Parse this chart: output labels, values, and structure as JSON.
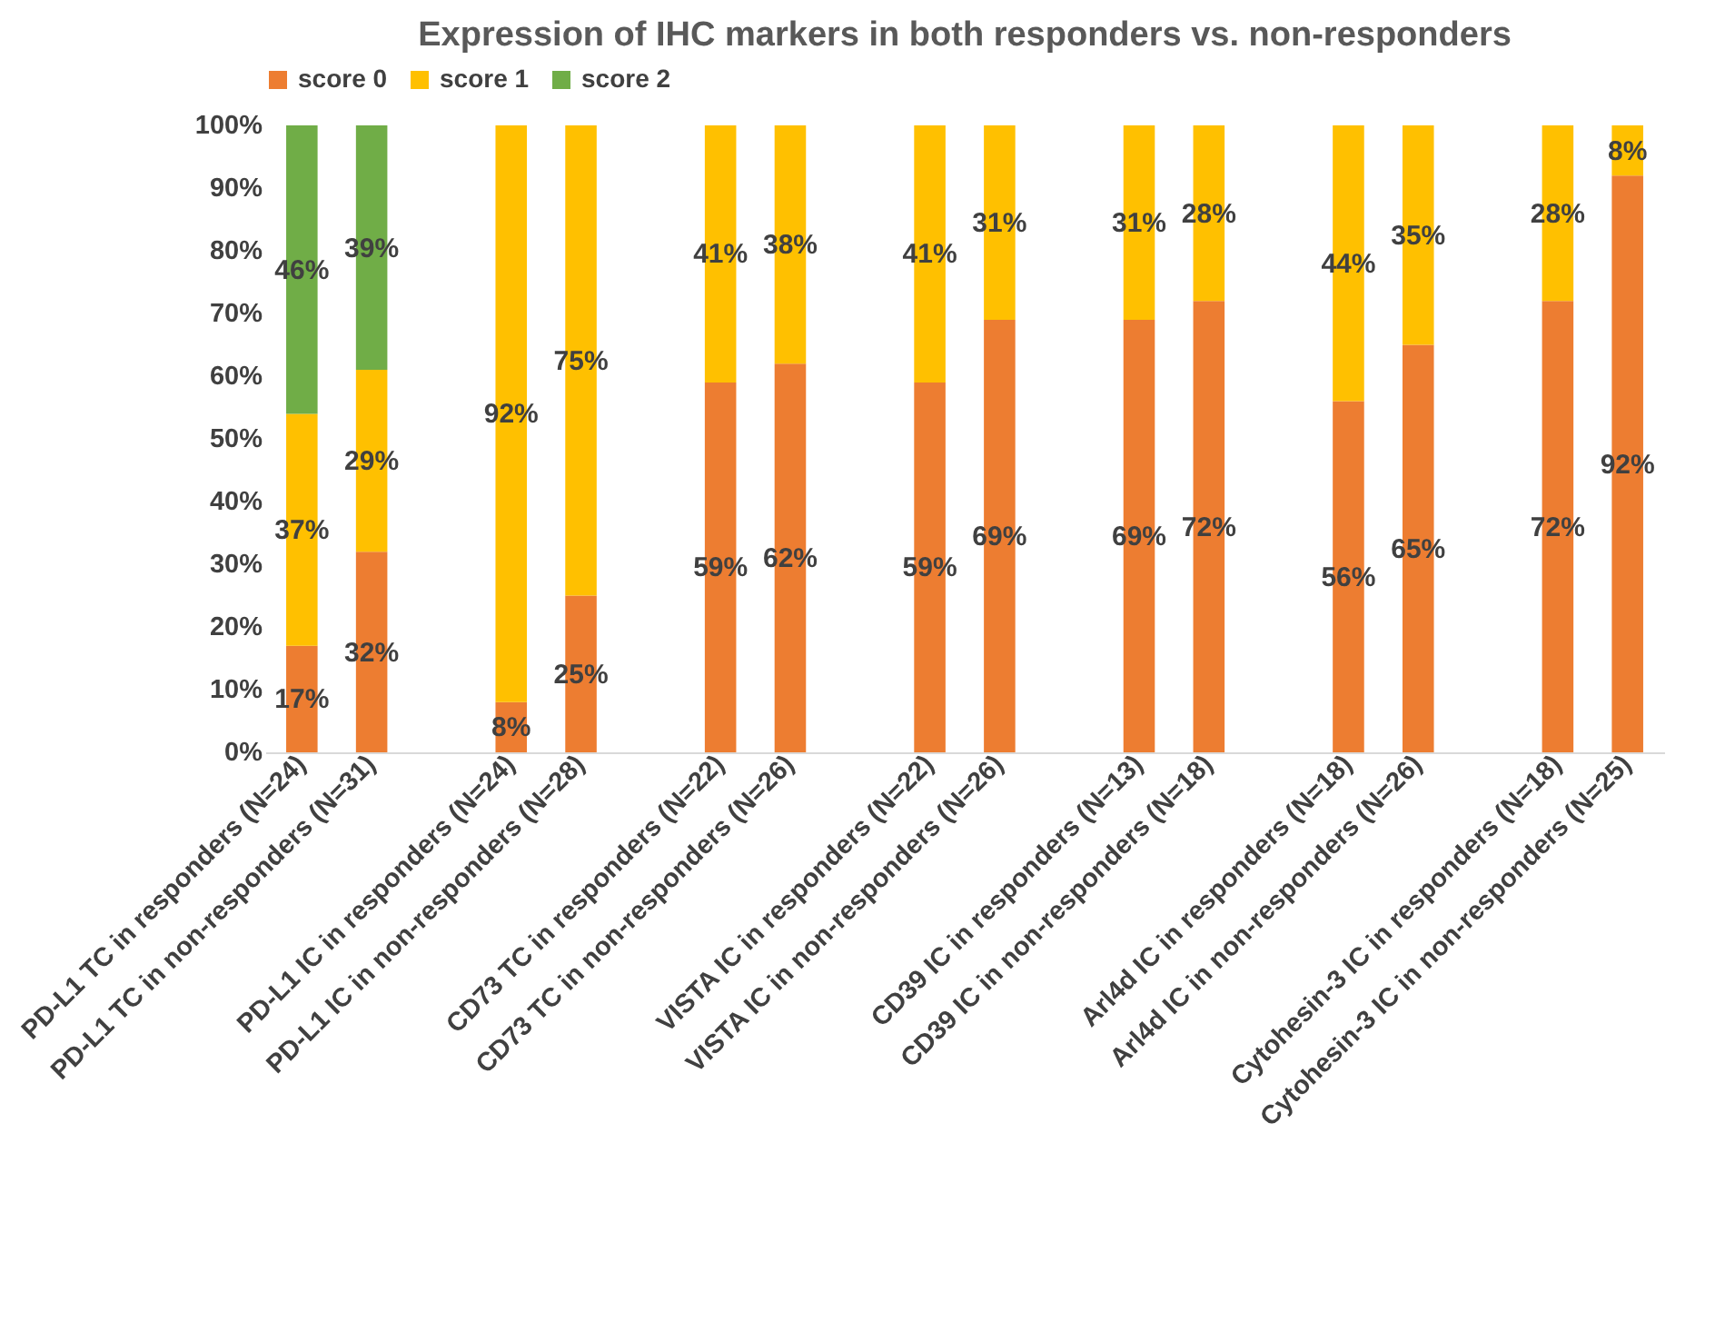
{
  "chart_data": {
    "type": "bar",
    "stacked": true,
    "title": "Expression of IHC markers in both responders vs. non-responders",
    "categories": [
      "PD-L1 TC in responders (N=24)",
      "PD-L1 TC in non-responders (N=31)",
      null,
      "PD-L1 IC in responders (N=24)",
      "PD-L1 IC in non-responders (N=28)",
      null,
      "CD73 TC in responders (N=22)",
      "CD73 TC in non-responders (N=26)",
      null,
      "VISTA IC in responders (N=22)",
      "VISTA IC in non-responders (N=26)",
      null,
      "CD39 IC in responders (N=13)",
      "CD39 IC in non-responders (N=18)",
      null,
      "Arl4d IC in responders (N=18)",
      "Arl4d IC in non-responders (N=26)",
      null,
      "Cytohesin-3 IC in responders (N=18)",
      "Cytohesin-3 IC in non-responders (N=25)"
    ],
    "series": [
      {
        "name": "score 0",
        "color": "#ed7d31",
        "values": [
          17,
          32,
          null,
          8,
          25,
          null,
          59,
          62,
          null,
          59,
          69,
          null,
          69,
          72,
          null,
          56,
          65,
          null,
          72,
          92
        ],
        "value_labels": [
          "17%",
          "32%",
          null,
          "8%",
          "25%",
          null,
          "59%",
          "62%",
          null,
          "59%",
          "69%",
          null,
          "69%",
          "72%",
          null,
          "56%",
          "65%",
          null,
          "72%",
          "92%"
        ]
      },
      {
        "name": "score 1",
        "color": "#ffc000",
        "values": [
          37,
          29,
          null,
          92,
          75,
          null,
          41,
          38,
          null,
          41,
          31,
          null,
          31,
          28,
          null,
          44,
          35,
          null,
          28,
          8
        ],
        "value_labels": [
          "37%",
          "29%",
          null,
          "92%",
          "75%",
          null,
          "41%",
          "38%",
          null,
          "41%",
          "31%",
          null,
          "31%",
          "28%",
          null,
          "44%",
          "35%",
          null,
          "28%",
          "8%"
        ]
      },
      {
        "name": "score 2",
        "color": "#70ad47",
        "values": [
          46,
          39,
          null,
          null,
          null,
          null,
          null,
          null,
          null,
          null,
          null,
          null,
          null,
          null,
          null,
          null,
          null,
          null,
          null,
          null
        ],
        "value_labels": [
          "46%",
          "39%",
          null,
          null,
          null,
          null,
          null,
          null,
          null,
          null,
          null,
          null,
          null,
          null,
          null,
          null,
          null,
          null,
          null,
          null
        ]
      }
    ],
    "ylim": [
      0,
      100
    ],
    "yticks": [
      {
        "value": 0,
        "label": "0%"
      },
      {
        "value": 10,
        "label": "10%"
      },
      {
        "value": 20,
        "label": "20%"
      },
      {
        "value": 30,
        "label": "30%"
      },
      {
        "value": 40,
        "label": "40%"
      },
      {
        "value": 50,
        "label": "50%"
      },
      {
        "value": 60,
        "label": "60%"
      },
      {
        "value": 70,
        "label": "70%"
      },
      {
        "value": 80,
        "label": "80%"
      },
      {
        "value": 90,
        "label": "90%"
      },
      {
        "value": 100,
        "label": "100%"
      }
    ],
    "legend": "top"
  }
}
